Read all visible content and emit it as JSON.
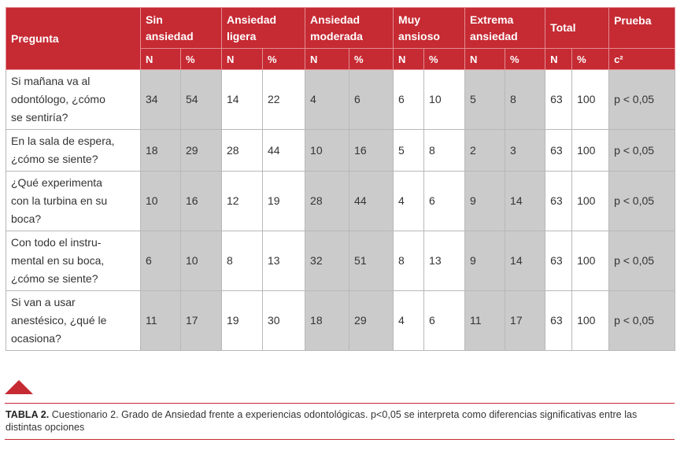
{
  "header": {
    "pregunta": "Pregunta",
    "groups": [
      {
        "line1": "Sin",
        "line2": "ansiedad"
      },
      {
        "line1": "Ansiedad",
        "line2": "ligera"
      },
      {
        "line1": "Ansiedad",
        "line2": "moderada"
      },
      {
        "line1": "Muy",
        "line2": "ansioso"
      },
      {
        "line1": "Extrema",
        "line2": "ansiedad"
      },
      {
        "line1": "Total",
        "line2": ""
      }
    ],
    "prueba": "Prueba",
    "n_label": "N",
    "pct_label": "%",
    "test_symbol": "c²"
  },
  "rows": [
    {
      "question": [
        "Si mañana va al",
        "odontólogo, ¿cómo",
        "se sentiría?"
      ],
      "values": [
        "34",
        "54",
        "14",
        "22",
        "4",
        "6",
        "6",
        "10",
        "5",
        "8",
        "63",
        "100"
      ],
      "test": "p < 0,05"
    },
    {
      "question": [
        "En la sala de espera,",
        "¿cómo se siente?"
      ],
      "values": [
        "18",
        "29",
        "28",
        "44",
        "10",
        "16",
        "5",
        "8",
        "2",
        "3",
        "63",
        "100"
      ],
      "test": "p < 0,05"
    },
    {
      "question": [
        "¿Qué experimenta",
        "con la turbina en su",
        "boca?"
      ],
      "values": [
        "10",
        "16",
        "12",
        "19",
        "28",
        "44",
        "4",
        "6",
        "9",
        "14",
        "63",
        "100"
      ],
      "test": "p < 0,05"
    },
    {
      "question": [
        "Con todo el instru-",
        "mental en su boca,",
        "¿cómo se siente?"
      ],
      "values": [
        "6",
        "10",
        "8",
        "13",
        "32",
        "51",
        "8",
        "13",
        "9",
        "14",
        "63",
        "100"
      ],
      "test": "p < 0,05"
    },
    {
      "question": [
        "Si van a usar",
        "anestésico, ¿qué le",
        "ocasiona?"
      ],
      "values": [
        "11",
        "17",
        "19",
        "30",
        "18",
        "29",
        "4",
        "6",
        "11",
        "17",
        "63",
        "100"
      ],
      "test": "p < 0,05"
    }
  ],
  "caption": {
    "label": "TABLA 2.",
    "text": "Cuestionario 2. Grado de Ansiedad frente a experiencias odontológicas. p<0,05 se interpreta como diferencias significativas entre las distintas opciones"
  },
  "colors": {
    "accent": "#c62a33",
    "shaded_cell": "#cbcbcb"
  }
}
